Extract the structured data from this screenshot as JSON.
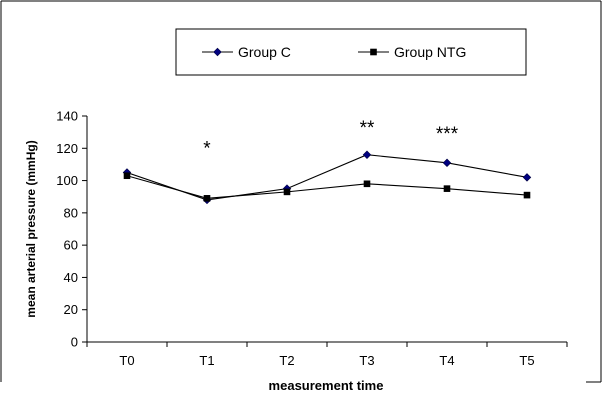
{
  "chart_data": {
    "type": "line",
    "title": "",
    "xlabel": "measurement time",
    "ylabel": "mean arterial pressure (mmHg)",
    "categories": [
      "T0",
      "T1",
      "T2",
      "T3",
      "T4",
      "T5"
    ],
    "ylim": [
      0,
      140
    ],
    "yticks": [
      0,
      20,
      40,
      60,
      80,
      100,
      120,
      140
    ],
    "grid": false,
    "legend_position": "top",
    "series": [
      {
        "name": "Group C",
        "marker": "diamond",
        "values": [
          105,
          88,
          95,
          116,
          111,
          102
        ]
      },
      {
        "name": "Group NTG",
        "marker": "square",
        "values": [
          103,
          89,
          93,
          98,
          95,
          91
        ]
      }
    ],
    "annotations": [
      {
        "text": "*",
        "category": "T1",
        "y": 116
      },
      {
        "text": "**",
        "category": "T3",
        "y": 129
      },
      {
        "text": "***",
        "category": "T4",
        "y": 125
      }
    ]
  }
}
